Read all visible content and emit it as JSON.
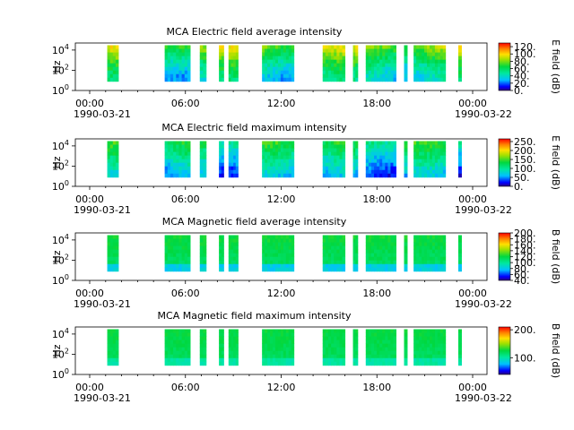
{
  "chart_data": [
    {
      "type": "heatmap",
      "title": "MCA  Electric field average intensity",
      "ylabel": "Hz",
      "y_scale": "log",
      "ylim": [
        1,
        50000
      ],
      "y_ticks": [
        {
          "value": 1,
          "base": "10",
          "exp": "0"
        },
        {
          "value": 100,
          "base": "10",
          "exp": "2"
        },
        {
          "value": 10000,
          "base": "10",
          "exp": "4"
        }
      ],
      "x_ticks": [
        "00:00",
        "06:00",
        "12:00",
        "18:00",
        "00:00"
      ],
      "x_dates": [
        "1990-03-21",
        "1990-03-22"
      ],
      "colorbar": {
        "label": "E field (dB)",
        "range": [
          0,
          130
        ],
        "ticks": [
          "0.",
          "20.",
          "40.",
          "60.",
          "80.",
          "100.",
          "120."
        ],
        "tick_values": [
          0,
          20,
          40,
          60,
          80,
          100,
          120
        ]
      },
      "data_intervals_hours": [
        [
          1.1,
          1.8
        ],
        [
          4.7,
          6.3
        ],
        [
          6.9,
          7.3
        ],
        [
          8.1,
          8.4
        ],
        [
          8.7,
          9.3
        ],
        [
          10.8,
          12.8
        ],
        [
          14.6,
          16.0
        ],
        [
          16.5,
          16.8
        ],
        [
          17.3,
          19.2
        ],
        [
          19.7,
          19.9
        ],
        [
          20.3,
          22.3
        ],
        [
          23.1,
          23.3
        ]
      ]
    },
    {
      "type": "heatmap",
      "title": "MCA  Electric field maximum intensity",
      "ylabel": "Hz",
      "y_scale": "log",
      "ylim": [
        1,
        50000
      ],
      "y_ticks": [
        {
          "value": 1,
          "base": "10",
          "exp": "0"
        },
        {
          "value": 100,
          "base": "10",
          "exp": "2"
        },
        {
          "value": 10000,
          "base": "10",
          "exp": "4"
        }
      ],
      "x_ticks": [
        "00:00",
        "06:00",
        "12:00",
        "18:00",
        "00:00"
      ],
      "x_dates": [
        "1990-03-21",
        "1990-03-22"
      ],
      "colorbar": {
        "label": "E field (dB)",
        "range": [
          0,
          265
        ],
        "ticks": [
          "0.",
          "50.",
          "100.",
          "150.",
          "200.",
          "250."
        ],
        "tick_values": [
          0,
          50,
          100,
          150,
          200,
          250
        ]
      },
      "data_intervals_hours": [
        [
          1.1,
          1.8
        ],
        [
          4.7,
          6.3
        ],
        [
          6.9,
          7.3
        ],
        [
          8.1,
          8.4
        ],
        [
          8.7,
          9.3
        ],
        [
          10.8,
          12.8
        ],
        [
          14.6,
          16.0
        ],
        [
          16.5,
          16.8
        ],
        [
          17.3,
          19.2
        ],
        [
          19.7,
          19.9
        ],
        [
          20.3,
          22.3
        ],
        [
          23.1,
          23.3
        ]
      ]
    },
    {
      "type": "heatmap",
      "title": "MCA  Magnetic field average intensity",
      "ylabel": "Hz",
      "y_scale": "log",
      "ylim": [
        1,
        50000
      ],
      "y_ticks": [
        {
          "value": 1,
          "base": "10",
          "exp": "0"
        },
        {
          "value": 100,
          "base": "10",
          "exp": "2"
        },
        {
          "value": 10000,
          "base": "10",
          "exp": "4"
        }
      ],
      "x_ticks": [
        "00:00",
        "06:00",
        "12:00",
        "18:00",
        "00:00"
      ],
      "x_dates": [
        "1990-03-21",
        "1990-03-22"
      ],
      "colorbar": {
        "label": "B field (dB)",
        "range": [
          40,
          200
        ],
        "ticks": [
          "40.",
          "60.",
          "80.",
          "100.",
          "120.",
          "140.",
          "160.",
          "180.",
          "200."
        ],
        "tick_values": [
          40,
          60,
          80,
          100,
          120,
          140,
          160,
          180,
          200
        ]
      },
      "data_intervals_hours": [
        [
          1.1,
          1.8
        ],
        [
          4.7,
          6.3
        ],
        [
          6.9,
          7.3
        ],
        [
          8.1,
          8.4
        ],
        [
          8.7,
          9.3
        ],
        [
          10.8,
          12.8
        ],
        [
          14.6,
          16.0
        ],
        [
          16.5,
          16.8
        ],
        [
          17.3,
          19.2
        ],
        [
          19.7,
          19.9
        ],
        [
          20.3,
          22.3
        ],
        [
          23.1,
          23.3
        ]
      ]
    },
    {
      "type": "heatmap",
      "title": "MCA  Magnetic field maximum intensity",
      "ylabel": "Hz",
      "y_scale": "log",
      "ylim": [
        1,
        50000
      ],
      "y_ticks": [
        {
          "value": 1,
          "base": "10",
          "exp": "0"
        },
        {
          "value": 100,
          "base": "10",
          "exp": "2"
        },
        {
          "value": 10000,
          "base": "10",
          "exp": "4"
        }
      ],
      "x_ticks": [
        "00:00",
        "06:00",
        "12:00",
        "18:00",
        "00:00"
      ],
      "x_dates": [
        "1990-03-21",
        "1990-03-22"
      ],
      "colorbar": {
        "label": "B field (dB)",
        "range": [
          40,
          210
        ],
        "ticks": [
          "100.",
          "200."
        ],
        "tick_values": [
          100,
          200
        ]
      },
      "data_intervals_hours": [
        [
          1.1,
          1.8
        ],
        [
          4.7,
          6.3
        ],
        [
          6.9,
          7.3
        ],
        [
          8.1,
          8.4
        ],
        [
          8.7,
          9.3
        ],
        [
          10.8,
          12.8
        ],
        [
          14.6,
          16.0
        ],
        [
          16.5,
          16.8
        ],
        [
          17.3,
          19.2
        ],
        [
          19.7,
          19.9
        ],
        [
          20.3,
          22.3
        ],
        [
          23.1,
          23.3
        ]
      ]
    }
  ]
}
